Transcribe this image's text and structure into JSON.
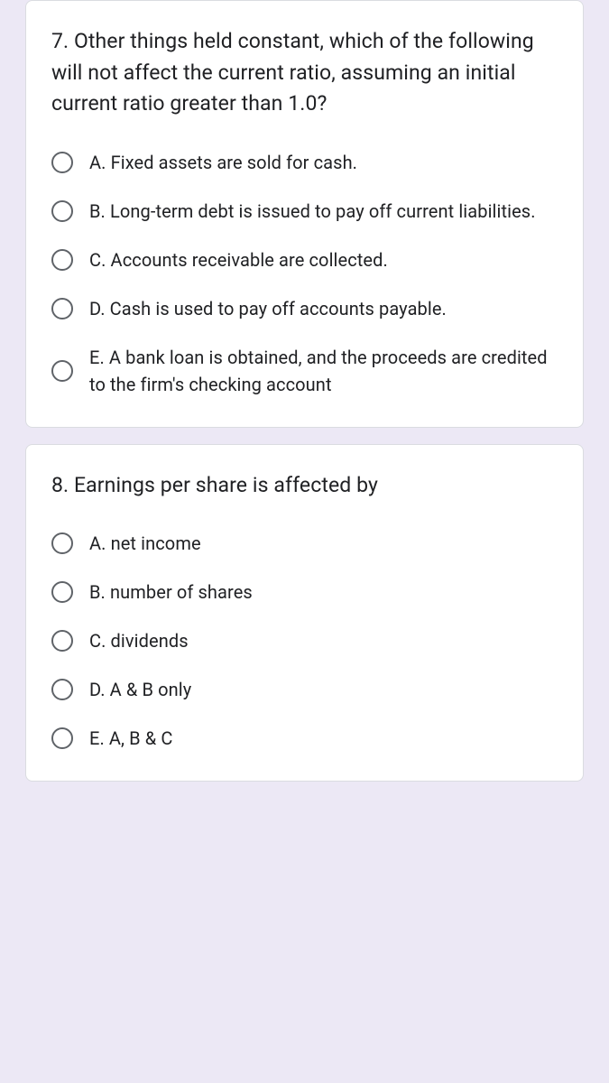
{
  "questions": [
    {
      "prompt": "7. Other things held constant, which of the following will not affect the current ratio, assuming an initial current ratio greater than 1.0?",
      "options": [
        "A. Fixed assets are sold for cash.",
        "B. Long-term debt is issued to pay off current liabilities.",
        "C. Accounts receivable are collected.",
        "D. Cash is used to pay off accounts payable.",
        "E. A bank loan is obtained, and the proceeds are credited to the firm's checking account"
      ]
    },
    {
      "prompt": "8. Earnings per share is affected by",
      "options": [
        "A. net income",
        "B. number of shares",
        "C. dividends",
        "D. A & B only",
        "E. A, B & C"
      ]
    }
  ],
  "colors": {
    "page_bg": "#ece8f5",
    "card_bg": "#ffffff",
    "card_border": "#dadce0",
    "text": "#202124",
    "radio_border": "#5f6368"
  }
}
